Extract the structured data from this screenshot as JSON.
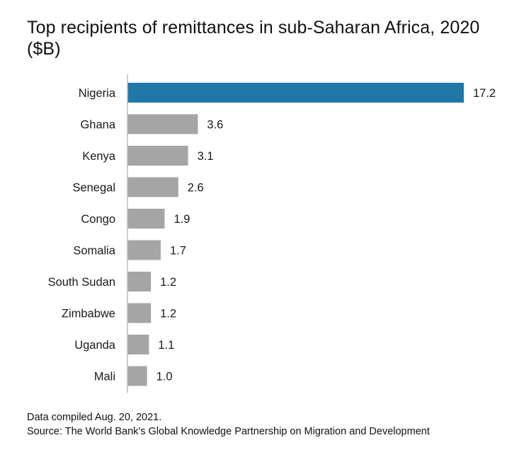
{
  "title": "Top recipients of remittances in sub-Saharan Africa, 2020 ($B)",
  "notes": {
    "compiled": "Data compiled Aug. 20, 2021.",
    "source": "Source: The World Bank's Global Knowledge Partnership on Migration and Development"
  },
  "colors": {
    "highlight": "#1f78a8",
    "bar": "#a5a5a5",
    "axis": "#bdbdbd"
  },
  "chart_data": {
    "type": "bar",
    "orientation": "horizontal",
    "title": "Top recipients of remittances in sub-Saharan Africa, 2020 ($B)",
    "categories": [
      "Nigeria",
      "Ghana",
      "Kenya",
      "Senegal",
      "Congo",
      "Somalia",
      "South Sudan",
      "Zimbabwe",
      "Uganda",
      "Mali"
    ],
    "values": [
      17.2,
      3.6,
      3.1,
      2.6,
      1.9,
      1.7,
      1.2,
      1.2,
      1.1,
      1.0
    ],
    "value_labels": [
      "17.2",
      "3.6",
      "3.1",
      "2.6",
      "1.9",
      "1.7",
      "1.2",
      "1.2",
      "1.1",
      "1.0"
    ],
    "highlighted_category": "Nigeria",
    "xlabel": "",
    "ylabel": "",
    "xlim": [
      0,
      17.2
    ],
    "grid": false,
    "legend": "none"
  }
}
